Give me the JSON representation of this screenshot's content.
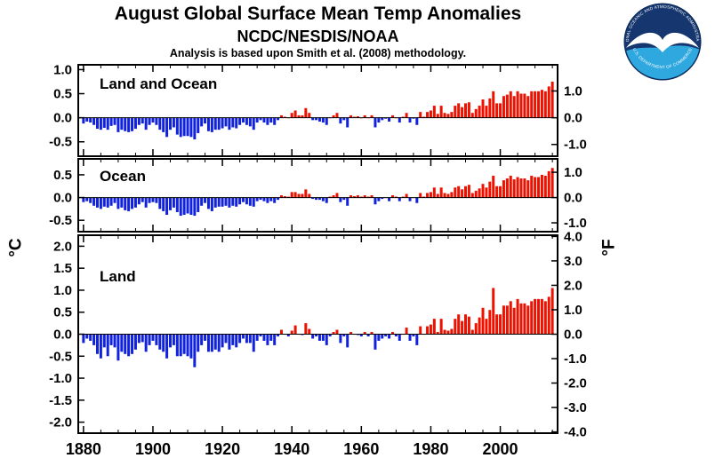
{
  "header": {
    "title": "August Global Surface Mean Temp Anomalies",
    "subtitle": "NCDC/NESDIS/NOAA",
    "note": "Analysis is based upon Smith et al. (2008) methodology."
  },
  "logo": {
    "ring_top": "NATIONAL OCEANIC AND ATMOSPHERIC ADMINISTRATION",
    "ring_bottom": "U.S. DEPARTMENT OF COMMERCE"
  },
  "axes": {
    "left_unit": "°C",
    "right_unit": "°F",
    "x_ticks": [
      1880,
      1900,
      1920,
      1940,
      1960,
      1980,
      2000
    ],
    "x_range": [
      1880,
      2015
    ]
  },
  "colors": {
    "positive": "#ee1100",
    "negative": "#1122dd",
    "axis": "#000000"
  },
  "chart_data": [
    {
      "type": "bar",
      "title": "Land and Ocean",
      "start_year": 1880,
      "end_year": 2015,
      "ylim_c": [
        -0.8,
        1.1
      ],
      "yticks_c": [
        1.0,
        0.5,
        0.0,
        -0.5
      ],
      "yticks_f": [
        1.0,
        0.0,
        -1.0
      ],
      "values": [
        -0.12,
        -0.08,
        -0.1,
        -0.15,
        -0.23,
        -0.25,
        -0.21,
        -0.25,
        -0.17,
        -0.15,
        -0.3,
        -0.25,
        -0.28,
        -0.3,
        -0.28,
        -0.23,
        -0.15,
        -0.12,
        -0.25,
        -0.15,
        -0.1,
        -0.15,
        -0.25,
        -0.3,
        -0.4,
        -0.25,
        -0.2,
        -0.35,
        -0.4,
        -0.38,
        -0.38,
        -0.4,
        -0.45,
        -0.32,
        -0.18,
        -0.12,
        -0.28,
        -0.3,
        -0.25,
        -0.25,
        -0.22,
        -0.18,
        -0.25,
        -0.2,
        -0.22,
        -0.15,
        -0.1,
        -0.15,
        -0.18,
        -0.25,
        -0.1,
        -0.05,
        -0.1,
        -0.15,
        -0.1,
        -0.15,
        -0.05,
        0.05,
        0.02,
        0.0,
        0.1,
        0.15,
        0.05,
        0.05,
        0.2,
        0.1,
        -0.05,
        -0.05,
        -0.08,
        -0.1,
        -0.15,
        0.0,
        0.05,
        0.1,
        -0.12,
        -0.05,
        -0.2,
        0.05,
        0.02,
        0.03,
        0.0,
        0.05,
        0.0,
        0.05,
        -0.2,
        -0.1,
        -0.05,
        -0.02,
        -0.08,
        0.05,
        0.0,
        -0.1,
        0.02,
        0.1,
        -0.1,
        -0.02,
        -0.15,
        0.12,
        0.02,
        0.12,
        0.15,
        0.25,
        0.08,
        0.25,
        0.1,
        0.08,
        0.12,
        0.25,
        0.3,
        0.22,
        0.3,
        0.32,
        0.1,
        0.18,
        0.25,
        0.38,
        0.25,
        0.4,
        0.55,
        0.3,
        0.3,
        0.45,
        0.48,
        0.55,
        0.45,
        0.55,
        0.5,
        0.5,
        0.45,
        0.55,
        0.55,
        0.55,
        0.58,
        0.55,
        0.65,
        0.75
      ]
    },
    {
      "type": "bar",
      "title": "Ocean",
      "start_year": 1880,
      "end_year": 2015,
      "ylim_c": [
        -0.75,
        0.85
      ],
      "yticks_c": [
        0.5,
        0.0,
        -0.5
      ],
      "yticks_f": [
        1.0,
        0.0,
        -1.0
      ],
      "values": [
        -0.1,
        -0.08,
        -0.12,
        -0.18,
        -0.22,
        -0.25,
        -0.2,
        -0.22,
        -0.18,
        -0.12,
        -0.25,
        -0.22,
        -0.28,
        -0.3,
        -0.25,
        -0.22,
        -0.15,
        -0.1,
        -0.22,
        -0.12,
        -0.1,
        -0.12,
        -0.25,
        -0.3,
        -0.38,
        -0.28,
        -0.22,
        -0.32,
        -0.4,
        -0.38,
        -0.35,
        -0.38,
        -0.4,
        -0.32,
        -0.18,
        -0.12,
        -0.25,
        -0.3,
        -0.22,
        -0.2,
        -0.2,
        -0.18,
        -0.22,
        -0.18,
        -0.2,
        -0.15,
        -0.1,
        -0.15,
        -0.18,
        -0.2,
        -0.08,
        -0.05,
        -0.08,
        -0.12,
        -0.08,
        -0.12,
        -0.05,
        0.05,
        0.03,
        0.02,
        0.12,
        0.12,
        0.08,
        0.08,
        0.18,
        0.08,
        -0.03,
        -0.05,
        -0.05,
        -0.08,
        -0.12,
        0.02,
        0.05,
        0.1,
        -0.1,
        -0.05,
        -0.18,
        0.05,
        0.03,
        0.05,
        0.02,
        0.05,
        0.02,
        0.05,
        -0.15,
        -0.08,
        -0.03,
        0.0,
        -0.08,
        0.05,
        0.02,
        -0.08,
        0.02,
        0.08,
        -0.08,
        0.0,
        -0.12,
        0.1,
        0.02,
        0.1,
        0.12,
        0.22,
        0.08,
        0.22,
        0.1,
        0.08,
        0.12,
        0.22,
        0.25,
        0.18,
        0.25,
        0.28,
        0.1,
        0.15,
        0.2,
        0.3,
        0.22,
        0.35,
        0.48,
        0.25,
        0.25,
        0.38,
        0.42,
        0.48,
        0.4,
        0.45,
        0.42,
        0.42,
        0.38,
        0.48,
        0.45,
        0.45,
        0.5,
        0.48,
        0.58,
        0.65
      ]
    },
    {
      "type": "bar",
      "title": "Land",
      "start_year": 1880,
      "end_year": 2015,
      "ylim_c": [
        -2.25,
        2.25
      ],
      "yticks_c": [
        2.0,
        1.5,
        1.0,
        0.5,
        0.0,
        -0.5,
        -1.0,
        -1.5,
        -2.0
      ],
      "yticks_f": [
        4.0,
        3.0,
        2.0,
        1.0,
        0.0,
        -1.0,
        -2.0,
        -3.0,
        -4.0
      ],
      "values": [
        -0.2,
        -0.1,
        -0.15,
        -0.25,
        -0.45,
        -0.55,
        -0.3,
        -0.5,
        -0.25,
        -0.3,
        -0.6,
        -0.4,
        -0.45,
        -0.5,
        -0.45,
        -0.35,
        -0.2,
        -0.18,
        -0.4,
        -0.25,
        -0.15,
        -0.25,
        -0.35,
        -0.4,
        -0.55,
        -0.3,
        -0.25,
        -0.5,
        -0.5,
        -0.45,
        -0.5,
        -0.55,
        -0.75,
        -0.4,
        -0.25,
        -0.15,
        -0.4,
        -0.4,
        -0.35,
        -0.4,
        -0.3,
        -0.2,
        -0.35,
        -0.25,
        -0.3,
        -0.2,
        -0.1,
        -0.2,
        -0.2,
        -0.4,
        -0.15,
        -0.05,
        -0.15,
        -0.25,
        -0.15,
        -0.25,
        -0.05,
        0.1,
        0.0,
        -0.05,
        0.08,
        0.2,
        0.0,
        -0.02,
        0.25,
        0.12,
        -0.1,
        -0.05,
        -0.15,
        -0.15,
        -0.25,
        -0.05,
        0.05,
        0.1,
        -0.2,
        -0.05,
        -0.3,
        0.05,
        0.0,
        -0.02,
        -0.05,
        0.05,
        -0.05,
        0.05,
        -0.35,
        -0.15,
        -0.1,
        -0.05,
        -0.1,
        0.05,
        -0.05,
        -0.15,
        0.0,
        0.15,
        -0.15,
        -0.05,
        -0.25,
        0.18,
        0.0,
        0.18,
        0.22,
        0.35,
        0.05,
        0.35,
        0.1,
        0.08,
        0.12,
        0.35,
        0.45,
        0.3,
        0.45,
        0.4,
        0.1,
        0.25,
        0.38,
        0.6,
        0.35,
        0.55,
        1.05,
        0.45,
        0.45,
        0.65,
        0.65,
        0.75,
        0.6,
        0.8,
        0.7,
        0.7,
        0.65,
        0.75,
        0.8,
        0.8,
        0.8,
        0.75,
        0.85,
        1.05
      ]
    }
  ]
}
